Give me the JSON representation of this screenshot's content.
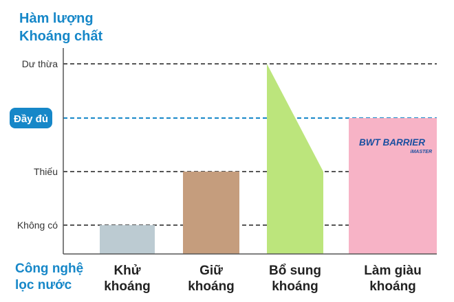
{
  "y_title": [
    "Hàm lượng",
    "Khoáng chất"
  ],
  "x_title": [
    "Công nghệ",
    "lọc nước"
  ],
  "brand": {
    "logo_line1": "BWT BARRIER",
    "logo_line2": "iMASTER"
  },
  "colors": {
    "accent": "#1687c8",
    "axis": "#555555",
    "grid_dashed": "#555555",
    "highlight_line": "#1687c8",
    "bar_gray": "#bccbd2",
    "bar_brown": "#c59d7d",
    "bar_green": "#bce57c",
    "bar_pink": "#f7b3c6",
    "tick_text": "#333333"
  },
  "chart_data": {
    "type": "bar",
    "y_levels": [
      "Không có",
      "Thiếu",
      "Đầy đủ",
      "Dư thừa"
    ],
    "highlight_level": "Đầy đủ",
    "categories": [
      [
        "Khử",
        "khoáng"
      ],
      [
        "Giữ",
        "khoáng"
      ],
      [
        "Bổ sung",
        "khoáng"
      ],
      [
        "Làm giàu",
        "khoáng"
      ]
    ],
    "values": [
      {
        "from": 0,
        "to": 0
      },
      {
        "from": 1,
        "to": 1
      },
      {
        "from": 3,
        "to": 1
      },
      {
        "from": 2,
        "to": 2
      }
    ],
    "bar_colors": [
      "#bccbd2",
      "#c59d7d",
      "#bce57c",
      "#f7b3c6"
    ],
    "grid": true,
    "legend": "none"
  }
}
